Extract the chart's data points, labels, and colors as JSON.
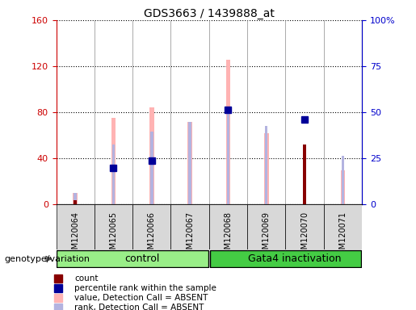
{
  "title": "GDS3663 / 1439888_at",
  "samples": [
    "GSM120064",
    "GSM120065",
    "GSM120066",
    "GSM120067",
    "GSM120068",
    "GSM120069",
    "GSM120070",
    "GSM120071"
  ],
  "value_absent": [
    10,
    75,
    84,
    72,
    126,
    62,
    0,
    30
  ],
  "rank_absent": [
    10,
    52,
    63,
    72,
    80,
    68,
    0,
    42
  ],
  "count": [
    4,
    0,
    0,
    0,
    0,
    0,
    52,
    0
  ],
  "percentile": [
    0,
    32,
    38,
    0,
    82,
    0,
    74,
    0
  ],
  "left_ylim": [
    0,
    160
  ],
  "right_ylim": [
    0,
    100
  ],
  "left_yticks": [
    0,
    40,
    80,
    120,
    160
  ],
  "right_yticks": [
    0,
    25,
    50,
    75,
    100
  ],
  "right_yticklabels": [
    "0",
    "25",
    "50",
    "75",
    "100%"
  ],
  "color_value_absent": "#ffb3b3",
  "color_rank_absent": "#b3b3e0",
  "color_count": "#880000",
  "color_percentile": "#000099",
  "color_left_axis": "#cc0000",
  "color_right_axis": "#0000cc",
  "color_control": "#99ee88",
  "color_gata4": "#44cc44",
  "legend_items": [
    {
      "label": "count",
      "color": "#880000"
    },
    {
      "label": "percentile rank within the sample",
      "color": "#000099"
    },
    {
      "label": "value, Detection Call = ABSENT",
      "color": "#ffb3b3"
    },
    {
      "label": "rank, Detection Call = ABSENT",
      "color": "#b3b3e0"
    }
  ],
  "genotype_label": "genotype/variation",
  "control_label": "control",
  "gata4_label": "Gata4 inactivation",
  "thin_bar_width": 0.12,
  "square_marker_size": 6
}
